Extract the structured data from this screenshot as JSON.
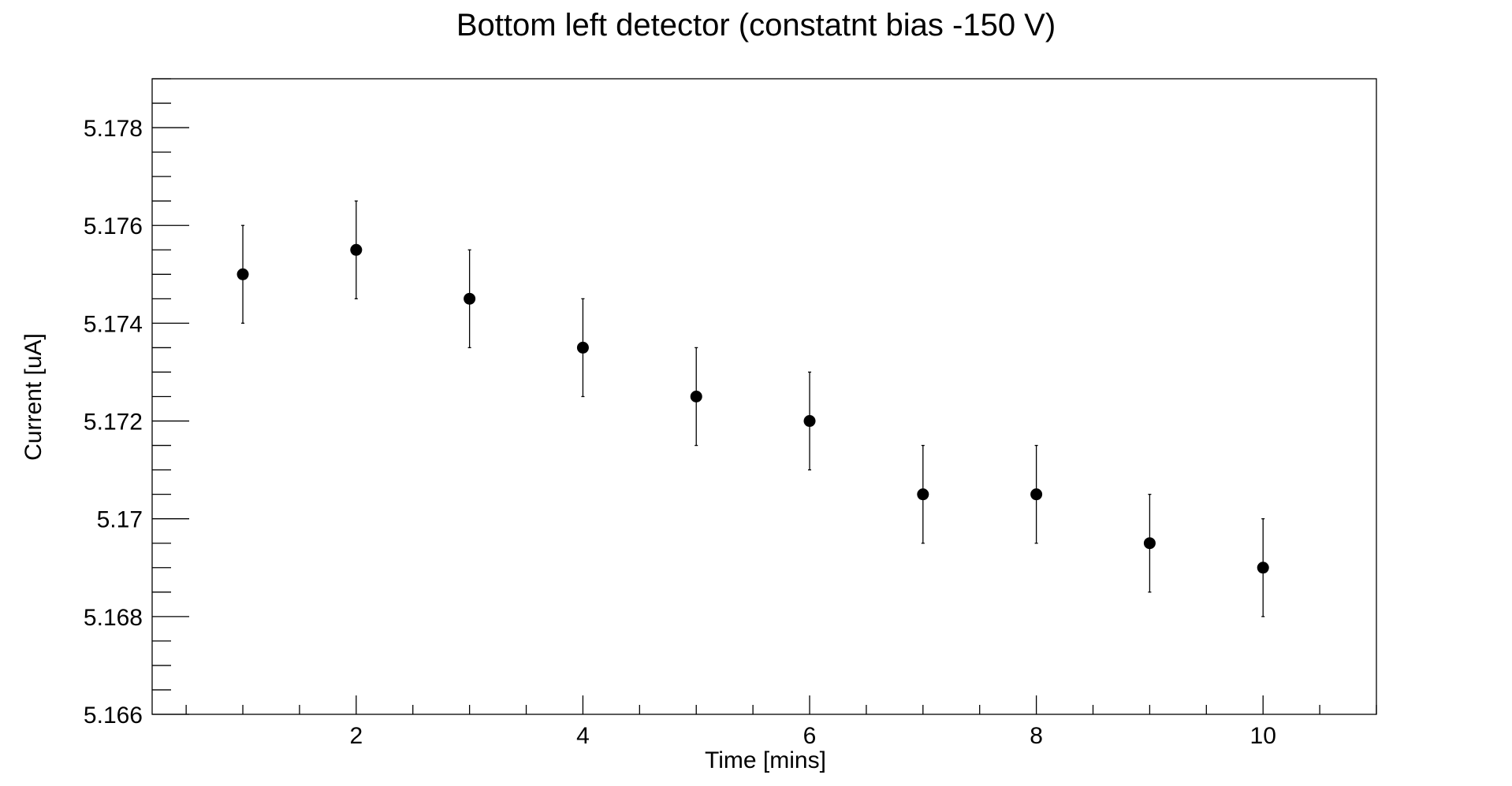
{
  "chart_data": {
    "type": "scatter",
    "title": "Bottom left detector (constatnt bias -150 V)",
    "xlabel": "Time [mins]",
    "ylabel": "Current [uA]",
    "xlim": [
      0.2,
      11.0
    ],
    "ylim": [
      5.166,
      5.179
    ],
    "x_major_ticks": [
      2,
      4,
      6,
      8,
      10
    ],
    "x_tick_labels": [
      "2",
      "4",
      "6",
      "8",
      "10"
    ],
    "y_major_ticks": [
      5.166,
      5.168,
      5.17,
      5.172,
      5.174,
      5.176,
      5.178
    ],
    "y_tick_labels": [
      "5.166",
      "5.168",
      "5.17",
      "5.172",
      "5.174",
      "5.176",
      "5.178"
    ],
    "grid": false,
    "legend": "none",
    "points": [
      {
        "x": 1,
        "y": 5.175,
        "err": 0.001
      },
      {
        "x": 2,
        "y": 5.1755,
        "err": 0.001
      },
      {
        "x": 3,
        "y": 5.1745,
        "err": 0.001
      },
      {
        "x": 4,
        "y": 5.1735,
        "err": 0.001
      },
      {
        "x": 5,
        "y": 5.1725,
        "err": 0.001
      },
      {
        "x": 6,
        "y": 5.172,
        "err": 0.001
      },
      {
        "x": 7,
        "y": 5.1705,
        "err": 0.001
      },
      {
        "x": 8,
        "y": 5.1705,
        "err": 0.001
      },
      {
        "x": 9,
        "y": 5.1695,
        "err": 0.001
      },
      {
        "x": 10,
        "y": 5.169,
        "err": 0.001
      }
    ],
    "marker_color": "#000000"
  }
}
